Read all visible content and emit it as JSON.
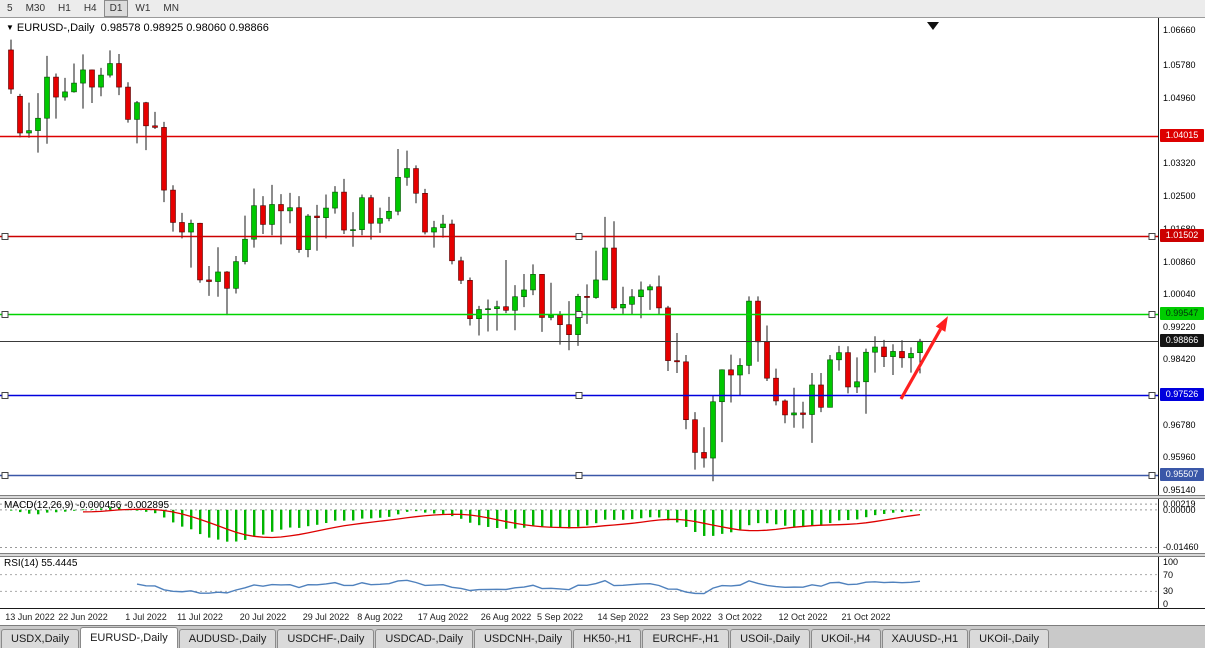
{
  "toolbar": {
    "timeframes": [
      {
        "label": "5",
        "active": false
      },
      {
        "label": "M30",
        "active": false
      },
      {
        "label": "H1",
        "active": false
      },
      {
        "label": "H4",
        "active": false
      },
      {
        "label": "D1",
        "active": true
      },
      {
        "label": "W1",
        "active": false
      },
      {
        "label": "MN",
        "active": false
      }
    ]
  },
  "header": {
    "symbol": "EURUSD-,Daily",
    "ohlc": "0.98578 0.98925 0.98060 0.98866"
  },
  "colors": {
    "bull": "#00c800",
    "bull_border": "#004d00",
    "bear": "#e60000",
    "bear_border": "#4d0000",
    "wick": "#1a1a1a",
    "macd_hist": "#00b400",
    "macd_signal": "#dd0000",
    "rsi_line": "#4f81bd",
    "arrow": "#ff2020"
  },
  "lines": [
    {
      "value": 1.04015,
      "label": "1.04015",
      "color": "#dd0000",
      "label_bg": "#dd0000",
      "label_fg": "#ffffff",
      "handles": false,
      "width": 1.4
    },
    {
      "value": 1.01502,
      "label": "1.01502",
      "color": "#cc0000",
      "label_bg": "#cc0000",
      "label_fg": "#ffffff",
      "handles": true,
      "width": 1.4
    },
    {
      "value": 0.99547,
      "label": "0.99547",
      "color": "#00d400",
      "label_bg": "#00cc00",
      "label_fg": "#00330a",
      "handles": true,
      "width": 1.6
    },
    {
      "value": 0.98866,
      "label": "0.98866",
      "color": "#3a3a3a",
      "label_bg": "#141414",
      "label_fg": "#ffffff",
      "handles": false,
      "width": 1
    },
    {
      "value": 0.97526,
      "label": "0.97526",
      "color": "#0000dd",
      "label_bg": "#0000dd",
      "label_fg": "#ffffff",
      "handles": true,
      "width": 1.4
    },
    {
      "value": 0.95507,
      "label": "0.95507",
      "color": "#3a57a8",
      "label_bg": "#3a57a8",
      "label_fg": "#ffffff",
      "handles": true,
      "width": 1.4
    }
  ],
  "macd": {
    "label": "MACD(12,26,9) -0.000456 -0.002895",
    "params": [
      12,
      26,
      9
    ],
    "axis": [
      {
        "label": "0.00219",
        "value": 0.00219
      },
      {
        "label": "0.00000",
        "value": 0
      },
      {
        "label": "-0.01460",
        "value": -0.0146
      }
    ]
  },
  "rsi": {
    "label": "RSI(14) 55.4445",
    "period": 14,
    "value": "55.4445",
    "axis": [
      {
        "label": "100",
        "value": 100
      },
      {
        "label": "70",
        "value": 70
      },
      {
        "label": "30",
        "value": 30
      },
      {
        "label": "0",
        "value": 0
      }
    ],
    "dashed_levels": [
      70,
      30
    ]
  },
  "chart_data": {
    "type": "candlestick",
    "symbol": "EURUSD-",
    "timeframe": "Daily",
    "y_ticks": [
      "1.06660",
      "1.05780",
      "1.04960",
      "1.03320",
      "1.02500",
      "1.01680",
      "1.00860",
      "1.00040",
      "0.99220",
      "0.98420",
      "0.96780",
      "0.95960",
      "0.95140"
    ],
    "x_ticks": [
      "13 Jun 2022",
      "22 Jun 2022",
      "1 Jul 2022",
      "11 Jul 2022",
      "20 Jul 2022",
      "29 Jul 2022",
      "8 Aug 2022",
      "17 Aug 2022",
      "26 Aug 2022",
      "5 Sep 2022",
      "14 Sep 2022",
      "23 Sep 2022",
      "3 Oct 2022",
      "12 Oct 2022",
      "21 Oct 2022"
    ],
    "annotation_arrow": {
      "type": "arrow",
      "color": "#ff2020",
      "from": {
        "x": 901,
        "price": 0.9742
      },
      "to": {
        "x": 944,
        "price": 0.9932
      }
    },
    "candles": [
      [
        "10 Jun",
        1.0616,
        1.0642,
        1.0506,
        1.0518
      ],
      [
        "13 Jun",
        1.05,
        1.0506,
        1.0397,
        1.0408
      ],
      [
        "14 Jun",
        1.0408,
        1.0484,
        1.0396,
        1.0414
      ],
      [
        "15 Jun",
        1.0414,
        1.0508,
        1.0359,
        1.0445
      ],
      [
        "16 Jun",
        1.0445,
        1.0601,
        1.0381,
        1.0548
      ],
      [
        "17 Jun",
        1.0548,
        1.0557,
        1.0444,
        1.0498
      ],
      [
        "20 Jun",
        1.0498,
        1.0546,
        1.0489,
        1.0511
      ],
      [
        "21 Jun",
        1.0511,
        1.0582,
        1.0509,
        1.0533
      ],
      [
        "22 Jun",
        1.0533,
        1.0605,
        1.0469,
        1.0566
      ],
      [
        "23 Jun",
        1.0566,
        1.0567,
        1.0483,
        1.0523
      ],
      [
        "24 Jun",
        1.0523,
        1.0571,
        1.05,
        1.0553
      ],
      [
        "27 Jun",
        1.0553,
        1.0615,
        1.0547,
        1.0582
      ],
      [
        "28 Jun",
        1.0582,
        1.0606,
        1.0503,
        1.0523
      ],
      [
        "29 Jun",
        1.0523,
        1.0535,
        1.0434,
        1.0442
      ],
      [
        "30 Jun",
        1.0442,
        1.0488,
        1.0382,
        1.0484
      ],
      [
        "1 Jul",
        1.0484,
        1.0486,
        1.0365,
        1.0426
      ],
      [
        "4 Jul",
        1.0426,
        1.0461,
        1.0418,
        1.0422
      ],
      [
        "5 Jul",
        1.0422,
        1.0436,
        1.0235,
        1.0265
      ],
      [
        "6 Jul",
        1.0265,
        1.0277,
        1.0161,
        1.0184
      ],
      [
        "7 Jul",
        1.0184,
        1.0208,
        1.0144,
        1.016
      ],
      [
        "8 Jul",
        1.016,
        1.0191,
        1.0071,
        1.0182
      ],
      [
        "11 Jul",
        1.0182,
        1.0183,
        1.0033,
        1.004
      ],
      [
        "12 Jul",
        1.004,
        1.0075,
        1.0,
        1.0036
      ],
      [
        "13 Jul",
        1.0036,
        1.0122,
        0.9998,
        1.006
      ],
      [
        "14 Jul",
        1.006,
        1.0062,
        0.9952,
        1.0019
      ],
      [
        "15 Jul",
        1.0019,
        1.01,
        1.0006,
        1.0086
      ],
      [
        "18 Jul",
        1.0086,
        1.0201,
        1.0079,
        1.0142
      ],
      [
        "19 Jul",
        1.0142,
        1.0269,
        1.0121,
        1.0226
      ],
      [
        "20 Jul",
        1.0226,
        1.025,
        1.0155,
        1.0179
      ],
      [
        "21 Jul",
        1.0179,
        1.0278,
        1.0152,
        1.0229
      ],
      [
        "22 Jul",
        1.0229,
        1.0255,
        1.0129,
        1.0213
      ],
      [
        "25 Jul",
        1.0213,
        1.0258,
        1.0182,
        1.0221
      ],
      [
        "26 Jul",
        1.0221,
        1.025,
        1.0108,
        1.0116
      ],
      [
        "27 Jul",
        1.0116,
        1.0205,
        1.0097,
        1.02
      ],
      [
        "28 Jul",
        1.02,
        1.0228,
        1.0113,
        1.0196
      ],
      [
        "29 Jul",
        1.0196,
        1.0254,
        1.0144,
        1.022
      ],
      [
        "1 Aug",
        1.022,
        1.0275,
        1.0206,
        1.026
      ],
      [
        "2 Aug",
        1.026,
        1.0293,
        1.0155,
        1.0165
      ],
      [
        "3 Aug",
        1.0165,
        1.021,
        1.0123,
        1.0166
      ],
      [
        "4 Aug",
        1.0166,
        1.0254,
        1.0152,
        1.0246
      ],
      [
        "5 Aug",
        1.0246,
        1.0253,
        1.0141,
        1.0182
      ],
      [
        "8 Aug",
        1.0182,
        1.0221,
        1.0158,
        1.0194
      ],
      [
        "9 Aug",
        1.0194,
        1.0248,
        1.0187,
        1.0212
      ],
      [
        "10 Aug",
        1.0212,
        1.0368,
        1.0202,
        1.0297
      ],
      [
        "11 Aug",
        1.0297,
        1.0364,
        1.0276,
        1.0319
      ],
      [
        "12 Aug",
        1.0319,
        1.0327,
        1.0232,
        1.0257
      ],
      [
        "15 Aug",
        1.0257,
        1.0268,
        1.0154,
        1.016
      ],
      [
        "16 Aug",
        1.016,
        1.0188,
        1.0121,
        1.0171
      ],
      [
        "17 Aug",
        1.0171,
        1.0203,
        1.0146,
        1.018
      ],
      [
        "18 Aug",
        1.018,
        1.0191,
        1.0079,
        1.0088
      ],
      [
        "19 Aug",
        1.0088,
        1.0098,
        1.003,
        1.0039
      ],
      [
        "22 Aug",
        1.0039,
        1.0046,
        0.9926,
        0.9943
      ],
      [
        "23 Aug",
        0.9943,
        0.9975,
        0.9901,
        0.9966
      ],
      [
        "24 Aug",
        0.9966,
        0.9991,
        0.9911,
        0.9968
      ],
      [
        "25 Aug",
        0.9968,
        0.9988,
        0.9913,
        0.9973
      ],
      [
        "26 Aug",
        0.9973,
        1.009,
        0.9957,
        0.9964
      ],
      [
        "29 Aug",
        0.9964,
        1.0027,
        0.9914,
        0.9998
      ],
      [
        "30 Aug",
        0.9998,
        1.0055,
        0.9972,
        1.0015
      ],
      [
        "31 Aug",
        1.0015,
        1.0079,
        1.0002,
        1.0054
      ],
      [
        "1 Sep",
        1.0054,
        1.0055,
        0.991,
        0.9946
      ],
      [
        "2 Sep",
        0.9946,
        1.0033,
        0.9939,
        0.9952
      ],
      [
        "5 Sep",
        0.9952,
        0.9962,
        0.9878,
        0.9928
      ],
      [
        "6 Sep",
        0.9928,
        0.9987,
        0.9864,
        0.9903
      ],
      [
        "7 Sep",
        0.9903,
        1.0005,
        0.9875,
        0.9999
      ],
      [
        "8 Sep",
        0.9999,
        1.0029,
        0.993,
        0.9996
      ],
      [
        "9 Sep",
        0.9996,
        1.0113,
        0.9993,
        1.004
      ],
      [
        "12 Sep",
        1.004,
        1.0198,
        1.004,
        1.012
      ],
      [
        "13 Sep",
        1.012,
        1.0187,
        0.9965,
        0.997
      ],
      [
        "14 Sep",
        0.997,
        1.0023,
        0.9955,
        0.9979
      ],
      [
        "15 Sep",
        0.9979,
        1.0017,
        0.9953,
        0.9998
      ],
      [
        "16 Sep",
        0.9998,
        1.0036,
        0.9944,
        1.0015
      ],
      [
        "19 Sep",
        1.0015,
        1.0029,
        0.9965,
        1.0023
      ],
      [
        "20 Sep",
        1.0023,
        1.0051,
        0.9954,
        0.997
      ],
      [
        "21 Sep",
        0.997,
        0.9975,
        0.9812,
        0.9838
      ],
      [
        "22 Sep",
        0.9838,
        0.9907,
        0.9807,
        0.9835
      ],
      [
        "23 Sep",
        0.9835,
        0.9852,
        0.9666,
        0.969
      ],
      [
        "26 Sep",
        0.969,
        0.9709,
        0.9565,
        0.9608
      ],
      [
        "27 Sep",
        0.9608,
        0.9671,
        0.957,
        0.9594
      ],
      [
        "28 Sep",
        0.9594,
        0.975,
        0.9536,
        0.9735
      ],
      [
        "29 Sep",
        0.9735,
        0.9816,
        0.9634,
        0.9815
      ],
      [
        "30 Sep",
        0.9815,
        0.9853,
        0.9733,
        0.9802
      ],
      [
        "3 Oct",
        0.9802,
        0.9844,
        0.9752,
        0.9826
      ],
      [
        "4 Oct",
        0.9826,
        0.9999,
        0.9804,
        0.9987
      ],
      [
        "5 Oct",
        0.9987,
        0.9999,
        0.9835,
        0.9885
      ],
      [
        "6 Oct",
        0.9885,
        0.9926,
        0.9787,
        0.9794
      ],
      [
        "7 Oct",
        0.9794,
        0.9818,
        0.9726,
        0.9737
      ],
      [
        "10 Oct",
        0.9737,
        0.9741,
        0.9681,
        0.9702
      ],
      [
        "11 Oct",
        0.9702,
        0.977,
        0.967,
        0.9707
      ],
      [
        "12 Oct",
        0.9707,
        0.9735,
        0.9668,
        0.9703
      ],
      [
        "13 Oct",
        0.9703,
        0.9807,
        0.9632,
        0.9777
      ],
      [
        "14 Oct",
        0.9777,
        0.9807,
        0.9709,
        0.9721
      ],
      [
        "17 Oct",
        0.9721,
        0.9852,
        0.9721,
        0.984
      ],
      [
        "18 Oct",
        0.984,
        0.9875,
        0.9813,
        0.9858
      ],
      [
        "19 Oct",
        0.9858,
        0.9874,
        0.9756,
        0.9772
      ],
      [
        "20 Oct",
        0.9772,
        0.9846,
        0.9757,
        0.9785
      ],
      [
        "21 Oct",
        0.9785,
        0.9868,
        0.9705,
        0.9859
      ],
      [
        "24 Oct",
        0.9859,
        0.9899,
        0.9808,
        0.9872
      ],
      [
        "25 Oct",
        0.9872,
        0.989,
        0.9822,
        0.9848
      ],
      [
        "26 Oct",
        0.9848,
        0.9879,
        0.9802,
        0.9861
      ],
      [
        "27 Oct",
        0.9861,
        0.9889,
        0.982,
        0.9845
      ],
      [
        "28 Oct",
        0.9845,
        0.9871,
        0.9808,
        0.9856
      ],
      [
        "31 Oct",
        0.98578,
        0.98925,
        0.9806,
        0.98866
      ]
    ]
  },
  "tabs": [
    {
      "label": "USDX,Daily",
      "active": false
    },
    {
      "label": "EURUSD-,Daily",
      "active": true
    },
    {
      "label": "AUDUSD-,Daily",
      "active": false
    },
    {
      "label": "USDCHF-,Daily",
      "active": false
    },
    {
      "label": "USDCAD-,Daily",
      "active": false
    },
    {
      "label": "USDCNH-,Daily",
      "active": false
    },
    {
      "label": "HK50-,H1",
      "active": false
    },
    {
      "label": "EURCHF-,H1",
      "active": false
    },
    {
      "label": "USOil-,Daily",
      "active": false
    },
    {
      "label": "UKOil-,H4",
      "active": false
    },
    {
      "label": "XAUUSD-,H1",
      "active": false
    },
    {
      "label": "UKOil-,Daily",
      "active": false
    }
  ]
}
